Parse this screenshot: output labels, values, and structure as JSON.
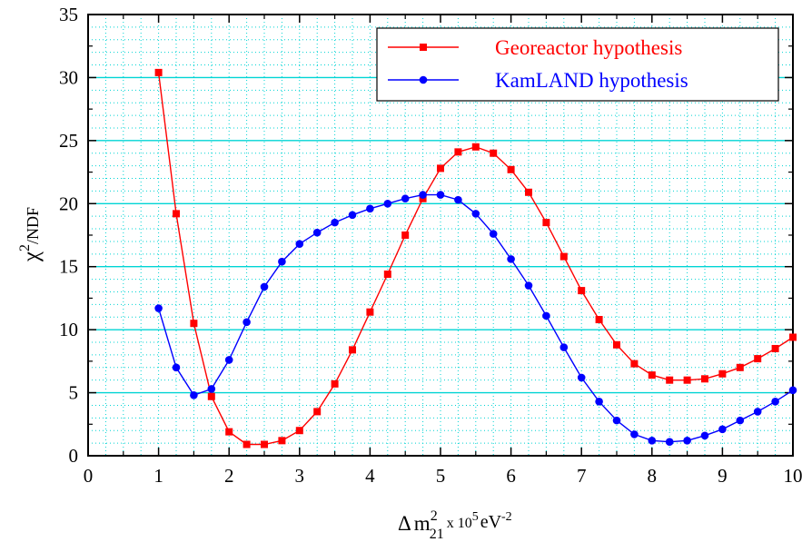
{
  "chart_data": {
    "type": "line",
    "xlabel": {
      "delta": "Δ",
      "m": "m",
      "sup": "2",
      "sub": "21",
      "rest": "x 10",
      "exp": "5",
      "unit": "eV",
      "unit_exp": "-2"
    },
    "ylabel": {
      "chi": "χ",
      "sup": "2",
      "rest": "/NDF"
    },
    "xlim": [
      0,
      10
    ],
    "ylim": [
      0,
      35
    ],
    "x_ticks": [
      "0",
      "1",
      "2",
      "3",
      "4",
      "5",
      "6",
      "7",
      "8",
      "9",
      "10"
    ],
    "y_ticks": [
      "0",
      "5",
      "10",
      "15",
      "20",
      "25",
      "30",
      "35"
    ],
    "grid": {
      "major_y": true,
      "minor_dotted": true,
      "color": "#00d4d4"
    },
    "legend": {
      "position": "top-right"
    },
    "series": [
      {
        "name": "Georeactor hypothesis",
        "color": "#ff0000",
        "marker": "square",
        "x": [
          1.0,
          1.25,
          1.5,
          1.75,
          2.0,
          2.25,
          2.5,
          2.75,
          3.0,
          3.25,
          3.5,
          3.75,
          4.0,
          4.25,
          4.5,
          4.75,
          5.0,
          5.25,
          5.5,
          5.75,
          6.0,
          6.25,
          6.5,
          6.75,
          7.0,
          7.25,
          7.5,
          7.75,
          8.0,
          8.25,
          8.5,
          8.75,
          9.0,
          9.25,
          9.5,
          9.75,
          10.0
        ],
        "y": [
          30.4,
          19.2,
          10.5,
          4.7,
          1.9,
          0.9,
          0.9,
          1.2,
          2.0,
          3.5,
          5.7,
          8.4,
          11.4,
          14.4,
          17.5,
          20.4,
          22.8,
          24.1,
          24.5,
          24.0,
          22.7,
          20.9,
          18.5,
          15.8,
          13.1,
          10.8,
          8.8,
          7.3,
          6.4,
          6.0,
          6.0,
          6.1,
          6.5,
          7.0,
          7.7,
          8.5,
          9.4
        ]
      },
      {
        "name": "KamLAND hypothesis",
        "color": "#0000ff",
        "marker": "circle",
        "x": [
          1.0,
          1.25,
          1.5,
          1.75,
          2.0,
          2.25,
          2.5,
          2.75,
          3.0,
          3.25,
          3.5,
          3.75,
          4.0,
          4.25,
          4.5,
          4.75,
          5.0,
          5.25,
          5.5,
          5.75,
          6.0,
          6.25,
          6.5,
          6.75,
          7.0,
          7.25,
          7.5,
          7.75,
          8.0,
          8.25,
          8.5,
          8.75,
          9.0,
          9.25,
          9.5,
          9.75,
          10.0
        ],
        "y": [
          11.7,
          7.0,
          4.8,
          5.3,
          7.6,
          10.6,
          13.4,
          15.4,
          16.8,
          17.7,
          18.5,
          19.1,
          19.6,
          20.0,
          20.4,
          20.7,
          20.7,
          20.3,
          19.2,
          17.6,
          15.6,
          13.5,
          11.1,
          8.6,
          6.2,
          4.3,
          2.8,
          1.7,
          1.2,
          1.1,
          1.2,
          1.6,
          2.1,
          2.8,
          3.5,
          4.3,
          5.2
        ]
      }
    ]
  }
}
